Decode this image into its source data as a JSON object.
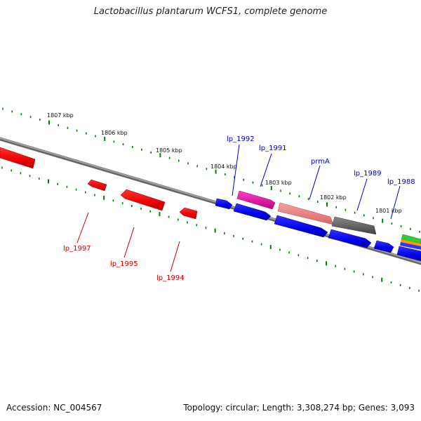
{
  "title": "Lactobacillus plantarum WCFS1, complete genome",
  "footer": {
    "accession": "Accession: NC_004567",
    "summary": "Topology: circular; Length: 3,308,274 bp; Genes: 3,093"
  },
  "colors": {
    "reverse_strand": "#ff0000",
    "forward_strand": "#0000ff",
    "backbone": "#808080",
    "ticks": "#008000",
    "label_reverse": "#cc0000",
    "label_forward": "#0000cc"
  },
  "scale_labels": [
    "1807 kbp",
    "1806 kbp",
    "1805 kbp",
    "1804 kbp",
    "1803 kbp",
    "1802 kbp",
    "1801 kbp"
  ],
  "gene_labels": {
    "lp_1997": "lp_1997",
    "lp_1995": "lp_1995",
    "lp_1994": "lp_1994",
    "lp_1992": "lp_1992",
    "lp_1991": "lp_1991",
    "prmA": "prmA",
    "lp_1989": "lp_1989",
    "lp_1988": "lp_1988"
  }
}
